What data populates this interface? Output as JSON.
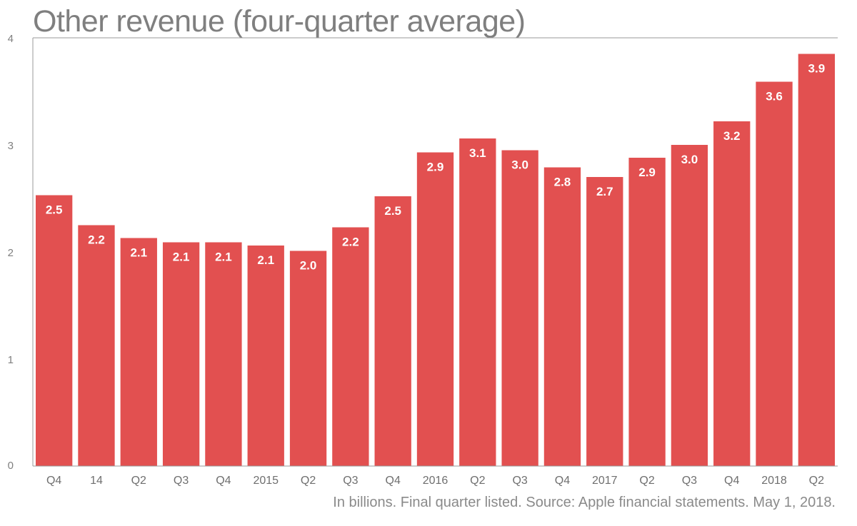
{
  "chart_data": {
    "type": "bar",
    "title": "Other revenue (four-quarter average)",
    "caption": "In billions. Final quarter listed. Source: Apple financial statements. May 1, 2018.",
    "categories": [
      "Q4",
      "14",
      "Q2",
      "Q3",
      "Q4",
      "2015",
      "Q2",
      "Q3",
      "Q4",
      "2016",
      "Q2",
      "Q3",
      "Q4",
      "2017",
      "Q2",
      "Q3",
      "Q4",
      "2018",
      "Q2"
    ],
    "values": [
      2.53,
      2.25,
      2.13,
      2.09,
      2.09,
      2.06,
      2.01,
      2.23,
      2.52,
      2.93,
      3.06,
      2.95,
      2.79,
      2.7,
      2.88,
      3.0,
      3.22,
      3.59,
      3.85
    ],
    "value_labels": [
      "2.5",
      "2.2",
      "2.1",
      "2.1",
      "2.1",
      "2.1",
      "2.0",
      "2.2",
      "2.5",
      "2.9",
      "3.1",
      "3.0",
      "2.8",
      "2.7",
      "2.9",
      "3.0",
      "3.2",
      "3.6",
      "3.9"
    ],
    "yticks": [
      "0",
      "1",
      "2",
      "3",
      "4"
    ],
    "ylim": [
      0,
      4
    ],
    "grid": false,
    "bar_color": "#e25050"
  }
}
